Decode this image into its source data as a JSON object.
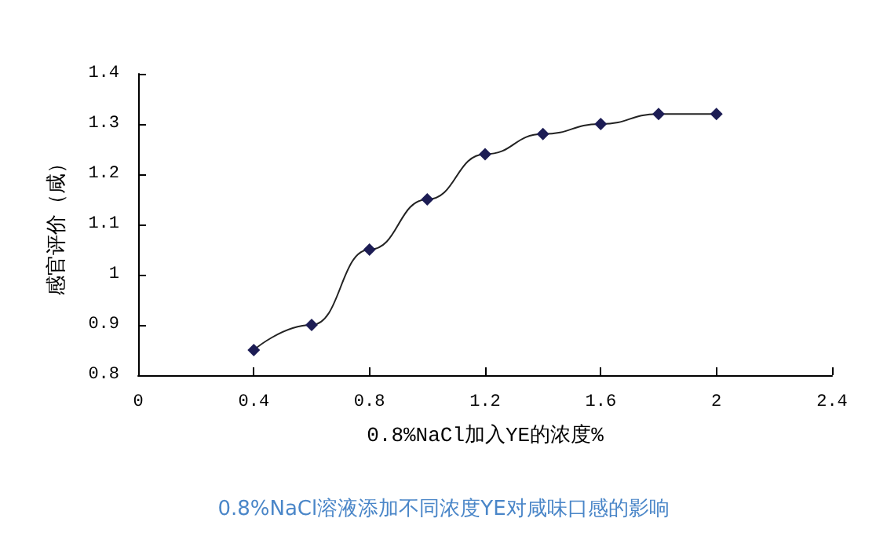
{
  "chart_data": {
    "type": "line",
    "xlabel": "0.8%NaCl加入YE的浓度%",
    "ylabel": "感官评价（咸）",
    "annotations": [
      "0.8%NaCl溶液添加不同浓度YE对咸味口感的影响"
    ],
    "x": [
      0.4,
      0.6,
      0.8,
      1.0,
      1.2,
      1.4,
      1.6,
      1.8,
      2.0
    ],
    "series": [
      {
        "color": "#1c1c54",
        "values": [
          0.85,
          0.9,
          1.05,
          1.15,
          1.24,
          1.28,
          1.3,
          1.32,
          1.32
        ]
      }
    ],
    "xlim": [
      0,
      2.4
    ],
    "xticks": [
      0,
      0.4,
      0.8,
      1.2,
      1.6,
      2,
      2.4
    ],
    "ylim": [
      0.8,
      1.4
    ],
    "yticks": [
      0.8,
      0.9,
      1,
      1.1,
      1.2,
      1.3,
      1.4
    ],
    "grid": false,
    "marker": "diamond",
    "line_style": "solid"
  }
}
